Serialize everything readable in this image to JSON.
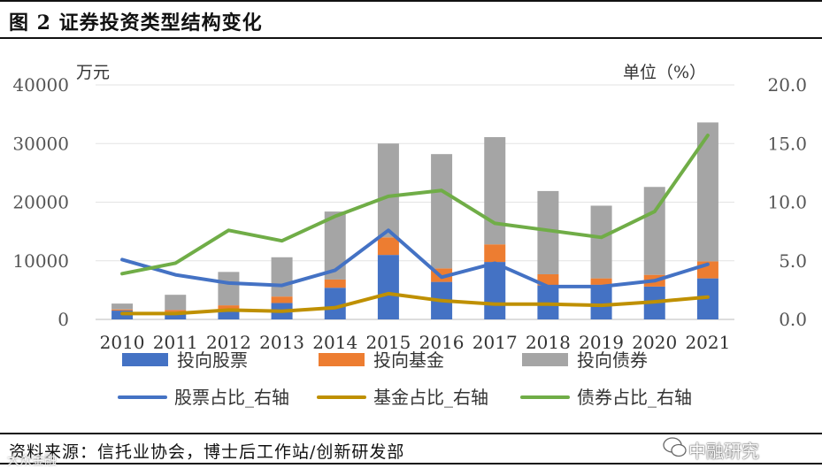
{
  "figure": {
    "title": "图 2  证券投资类型结构变化",
    "source": "资料来源：信托业协会，博士后工作站/创新研发部",
    "brand": "中融研究",
    "watermark": "大众金融"
  },
  "chart_data": {
    "type": "bar",
    "stacked": true,
    "left_unit": "万元",
    "right_unit": "单位（%）",
    "categories": [
      "2010",
      "2011",
      "2012",
      "2013",
      "2014",
      "2015",
      "2016",
      "2017",
      "2018",
      "2019",
      "2020",
      "2021"
    ],
    "ylim_left": [
      0,
      40000
    ],
    "yticks_left": [
      "0",
      "10000",
      "20000",
      "30000",
      "40000"
    ],
    "ylim_right": [
      0,
      20
    ],
    "yticks_right": [
      "0.0",
      "5.0",
      "10.0",
      "15.0",
      "20.0"
    ],
    "grid": true,
    "legend_position": "bottom",
    "bar_series": [
      {
        "name": "投向股票",
        "color": "#4472C4",
        "values": [
          1500,
          1300,
          1400,
          2800,
          5400,
          11000,
          6400,
          9800,
          5800,
          5900,
          5600,
          7000
        ]
      },
      {
        "name": "投向基金",
        "color": "#ED7D31",
        "values": [
          200,
          300,
          1000,
          1100,
          1400,
          3000,
          2300,
          3000,
          1900,
          1100,
          2000,
          2900
        ]
      },
      {
        "name": "投向债券",
        "color": "#A5A5A5",
        "values": [
          1000,
          2600,
          5700,
          6700,
          11600,
          16000,
          19500,
          18300,
          14200,
          12400,
          15000,
          23700
        ]
      }
    ],
    "line_series": [
      {
        "name": "股票占比_右轴",
        "color": "#4472C4",
        "values": [
          5.1,
          3.8,
          3.1,
          2.9,
          4.2,
          7.6,
          3.6,
          4.8,
          2.8,
          2.8,
          3.3,
          4.7
        ]
      },
      {
        "name": "基金占比_右轴",
        "color": "#BF9000",
        "values": [
          0.5,
          0.5,
          0.8,
          0.7,
          1.0,
          2.2,
          1.6,
          1.3,
          1.3,
          1.2,
          1.5,
          1.9
        ]
      },
      {
        "name": "债券占比_右轴",
        "color": "#70AD47",
        "values": [
          3.9,
          4.8,
          7.6,
          6.7,
          8.8,
          10.5,
          11.0,
          8.2,
          7.6,
          7.0,
          9.2,
          15.7
        ]
      }
    ]
  }
}
